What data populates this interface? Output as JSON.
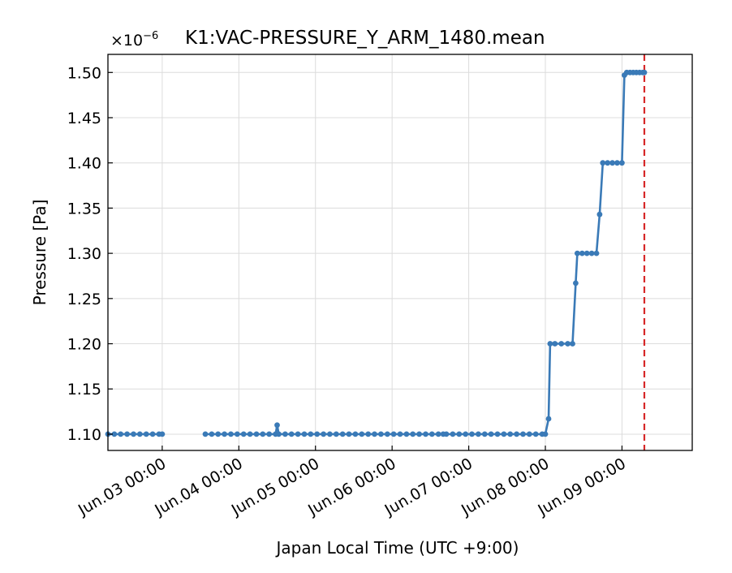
{
  "chart_data": {
    "type": "line",
    "title": "K1:VAC-PRESSURE_Y_ARM_1480.mean",
    "offset_text_base": "×10",
    "offset_text_exp": "−6",
    "xlabel": "Japan Local Time (UTC +9:00)",
    "ylabel": "Pressure [Pa]",
    "xlim": [
      "2021-06-02 07:00",
      "2021-06-09 22:00"
    ],
    "ylim": [
      1.082,
      1.52
    ],
    "grid": true,
    "x_ticks": [
      {
        "value": "2021-06-03 00:00",
        "label": "Jun.03 00:00"
      },
      {
        "value": "2021-06-04 00:00",
        "label": "Jun.04 00:00"
      },
      {
        "value": "2021-06-05 00:00",
        "label": "Jun.05 00:00"
      },
      {
        "value": "2021-06-06 00:00",
        "label": "Jun.06 00:00"
      },
      {
        "value": "2021-06-07 00:00",
        "label": "Jun.07 00:00"
      },
      {
        "value": "2021-06-08 00:00",
        "label": "Jun.08 00:00"
      },
      {
        "value": "2021-06-09 00:00",
        "label": "Jun.09 00:00"
      }
    ],
    "y_ticks": [
      {
        "value": 1.1,
        "label": "1.10"
      },
      {
        "value": 1.15,
        "label": "1.15"
      },
      {
        "value": 1.2,
        "label": "1.20"
      },
      {
        "value": 1.25,
        "label": "1.25"
      },
      {
        "value": 1.3,
        "label": "1.30"
      },
      {
        "value": 1.35,
        "label": "1.35"
      },
      {
        "value": 1.4,
        "label": "1.40"
      },
      {
        "value": 1.45,
        "label": "1.45"
      },
      {
        "value": 1.5,
        "label": "1.50"
      }
    ],
    "marker_line": {
      "x": "2021-06-09 07:00",
      "color": "#d62728",
      "style": "dashed"
    },
    "series": [
      {
        "color": "#3a7ab7",
        "segments": [
          [
            [
              "2021-06-02 07:00",
              1.1
            ],
            [
              "2021-06-02 09:00",
              1.1
            ],
            [
              "2021-06-02 11:00",
              1.1
            ],
            [
              "2021-06-02 13:00",
              1.1
            ],
            [
              "2021-06-02 15:00",
              1.1
            ],
            [
              "2021-06-02 17:00",
              1.1
            ],
            [
              "2021-06-02 19:00",
              1.1
            ],
            [
              "2021-06-02 21:00",
              1.1
            ],
            [
              "2021-06-02 23:00",
              1.1
            ],
            [
              "2021-06-03 00:00",
              1.1
            ]
          ],
          [
            [
              "2021-06-03 13:30",
              1.1
            ],
            [
              "2021-06-03 15:30",
              1.1
            ],
            [
              "2021-06-03 17:30",
              1.1
            ],
            [
              "2021-06-03 19:30",
              1.1
            ],
            [
              "2021-06-03 21:30",
              1.1
            ],
            [
              "2021-06-03 23:30",
              1.1
            ],
            [
              "2021-06-04 01:30",
              1.1
            ],
            [
              "2021-06-04 03:30",
              1.1
            ],
            [
              "2021-06-04 05:30",
              1.1
            ],
            [
              "2021-06-04 07:30",
              1.1
            ],
            [
              "2021-06-04 09:30",
              1.1
            ],
            [
              "2021-06-04 11:30",
              1.1
            ],
            [
              "2021-06-04 12:00",
              1.11
            ],
            [
              "2021-06-04 12:30",
              1.1
            ],
            [
              "2021-06-04 14:30",
              1.1
            ],
            [
              "2021-06-04 16:30",
              1.1
            ],
            [
              "2021-06-04 18:30",
              1.1
            ],
            [
              "2021-06-04 20:30",
              1.1
            ],
            [
              "2021-06-04 22:30",
              1.1
            ],
            [
              "2021-06-05 00:30",
              1.1
            ],
            [
              "2021-06-05 02:30",
              1.1
            ],
            [
              "2021-06-05 04:30",
              1.1
            ],
            [
              "2021-06-05 06:30",
              1.1
            ],
            [
              "2021-06-05 08:30",
              1.1
            ],
            [
              "2021-06-05 10:30",
              1.1
            ],
            [
              "2021-06-05 12:30",
              1.1
            ],
            [
              "2021-06-05 14:30",
              1.1
            ],
            [
              "2021-06-05 16:30",
              1.1
            ],
            [
              "2021-06-05 18:30",
              1.1
            ],
            [
              "2021-06-05 20:30",
              1.1
            ],
            [
              "2021-06-05 22:30",
              1.1
            ],
            [
              "2021-06-06 00:30",
              1.1
            ],
            [
              "2021-06-06 02:30",
              1.1
            ],
            [
              "2021-06-06 04:30",
              1.1
            ],
            [
              "2021-06-06 06:30",
              1.1
            ],
            [
              "2021-06-06 08:30",
              1.1
            ],
            [
              "2021-06-06 10:30",
              1.1
            ],
            [
              "2021-06-06 12:30",
              1.1
            ],
            [
              "2021-06-06 14:30",
              1.1
            ],
            [
              "2021-06-06 16:00",
              1.1
            ]
          ],
          [
            [
              "2021-06-06 17:00",
              1.1
            ],
            [
              "2021-06-06 19:00",
              1.1
            ],
            [
              "2021-06-06 21:00",
              1.1
            ],
            [
              "2021-06-06 23:00",
              1.1
            ],
            [
              "2021-06-07 01:00",
              1.1
            ],
            [
              "2021-06-07 03:00",
              1.1
            ],
            [
              "2021-06-07 05:00",
              1.1
            ],
            [
              "2021-06-07 07:00",
              1.1
            ],
            [
              "2021-06-07 09:00",
              1.1
            ],
            [
              "2021-06-07 11:00",
              1.1
            ],
            [
              "2021-06-07 13:00",
              1.1
            ],
            [
              "2021-06-07 15:00",
              1.1
            ],
            [
              "2021-06-07 17:00",
              1.1
            ],
            [
              "2021-06-07 19:00",
              1.1
            ],
            [
              "2021-06-07 21:00",
              1.1
            ],
            [
              "2021-06-07 23:00",
              1.1
            ],
            [
              "2021-06-08 00:00",
              1.1
            ],
            [
              "2021-06-08 01:00",
              1.117
            ],
            [
              "2021-06-08 01:30",
              1.2
            ],
            [
              "2021-06-08 03:00",
              1.2
            ],
            [
              "2021-06-08 05:00",
              1.2
            ],
            [
              "2021-06-08 07:00",
              1.2
            ],
            [
              "2021-06-08 08:30",
              1.2
            ],
            [
              "2021-06-08 09:30",
              1.267
            ],
            [
              "2021-06-08 10:00",
              1.3
            ],
            [
              "2021-06-08 11:30",
              1.3
            ],
            [
              "2021-06-08 13:00",
              1.3
            ],
            [
              "2021-06-08 14:30",
              1.3
            ],
            [
              "2021-06-08 16:00",
              1.3
            ],
            [
              "2021-06-08 17:00",
              1.343
            ],
            [
              "2021-06-08 18:00",
              1.4
            ],
            [
              "2021-06-08 19:30",
              1.4
            ],
            [
              "2021-06-08 21:00",
              1.4
            ],
            [
              "2021-06-08 22:30",
              1.4
            ],
            [
              "2021-06-09 00:00",
              1.4
            ],
            [
              "2021-06-09 00:45",
              1.497
            ],
            [
              "2021-06-09 01:30",
              1.5
            ],
            [
              "2021-06-09 02:30",
              1.5
            ],
            [
              "2021-06-09 03:30",
              1.5
            ],
            [
              "2021-06-09 04:30",
              1.5
            ],
            [
              "2021-06-09 05:30",
              1.5
            ],
            [
              "2021-06-09 06:30",
              1.5
            ],
            [
              "2021-06-09 07:00",
              1.5
            ]
          ]
        ]
      }
    ]
  }
}
